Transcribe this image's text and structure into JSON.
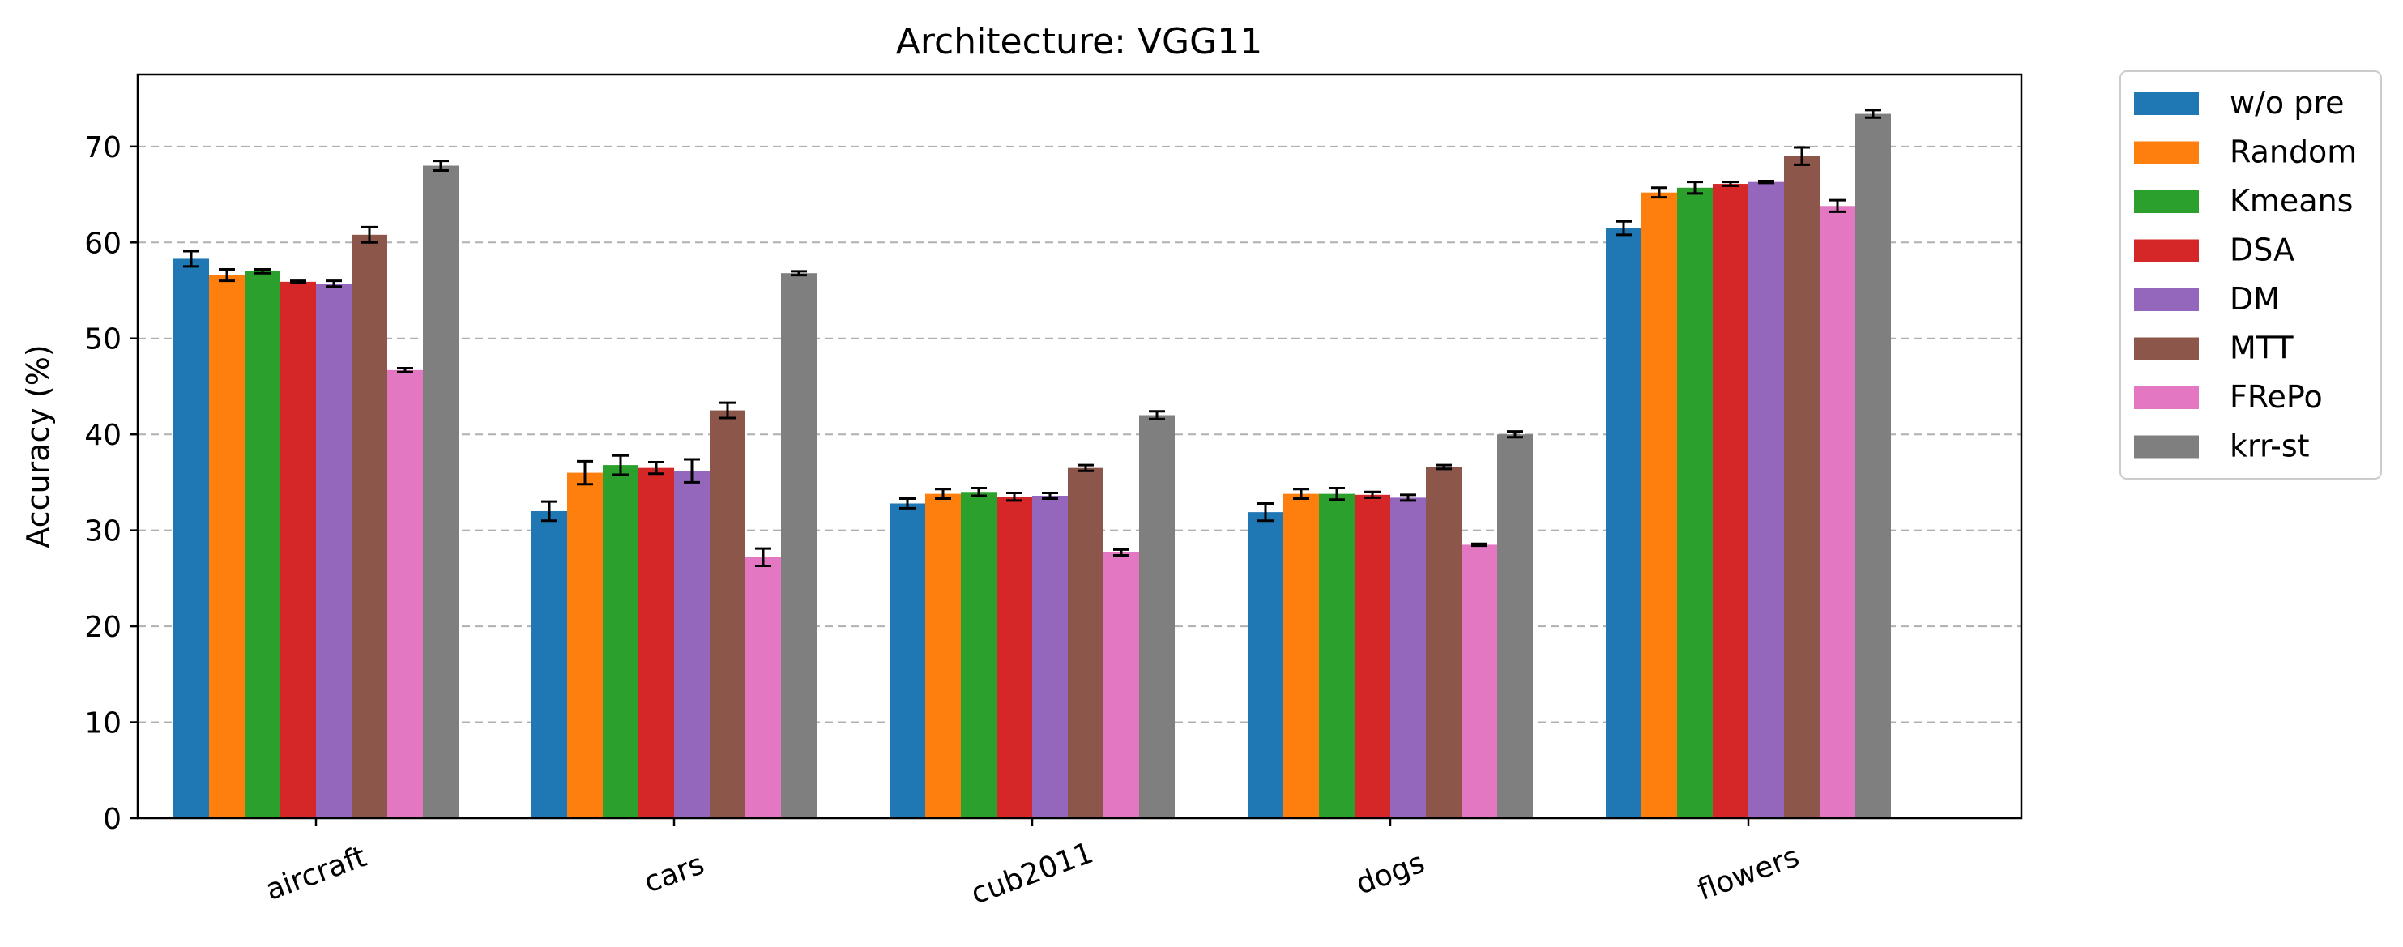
{
  "chart_data": {
    "type": "bar",
    "title": "Architecture: VGG11",
    "xlabel": "",
    "ylabel": "Accuracy (%)",
    "ylim": [
      0,
      77.5
    ],
    "yticks": [
      0,
      10,
      20,
      30,
      40,
      50,
      60,
      70
    ],
    "grid": "y-dashed",
    "legend_placement": "outside-top-right",
    "categories": [
      "aircraft",
      "cars",
      "cub2011",
      "dogs",
      "flowers"
    ],
    "series": [
      {
        "name": "w/o pre",
        "color": "#1f77b4",
        "values": [
          58.3,
          32.0,
          32.8,
          31.9,
          61.5
        ],
        "errors": [
          0.8,
          1.0,
          0.5,
          0.9,
          0.7
        ]
      },
      {
        "name": "Random",
        "color": "#ff7f0e",
        "values": [
          56.6,
          36.0,
          33.8,
          33.8,
          65.2
        ],
        "errors": [
          0.6,
          1.2,
          0.5,
          0.5,
          0.5
        ]
      },
      {
        "name": "Kmeans",
        "color": "#2ca02c",
        "values": [
          57.0,
          36.8,
          34.0,
          33.8,
          65.7
        ],
        "errors": [
          0.2,
          1.0,
          0.4,
          0.6,
          0.6
        ]
      },
      {
        "name": "DSA",
        "color": "#d62728",
        "values": [
          55.9,
          36.5,
          33.5,
          33.7,
          66.1
        ],
        "errors": [
          0.1,
          0.6,
          0.4,
          0.3,
          0.2
        ]
      },
      {
        "name": "DM",
        "color": "#9467bd",
        "values": [
          55.7,
          36.2,
          33.6,
          33.4,
          66.3
        ],
        "errors": [
          0.3,
          1.2,
          0.3,
          0.3,
          0.1
        ]
      },
      {
        "name": "MTT",
        "color": "#8c564b",
        "values": [
          60.8,
          42.5,
          36.5,
          36.6,
          69.0
        ],
        "errors": [
          0.8,
          0.8,
          0.3,
          0.2,
          0.9
        ]
      },
      {
        "name": "FRePo",
        "color": "#e377c2",
        "values": [
          46.7,
          27.2,
          27.7,
          28.5,
          63.8
        ],
        "errors": [
          0.2,
          0.9,
          0.3,
          0.1,
          0.6
        ]
      },
      {
        "name": "krr-st",
        "color": "#7f7f7f",
        "values": [
          68.0,
          56.8,
          42.0,
          40.0,
          73.4
        ],
        "errors": [
          0.5,
          0.2,
          0.4,
          0.3,
          0.4
        ]
      }
    ]
  }
}
